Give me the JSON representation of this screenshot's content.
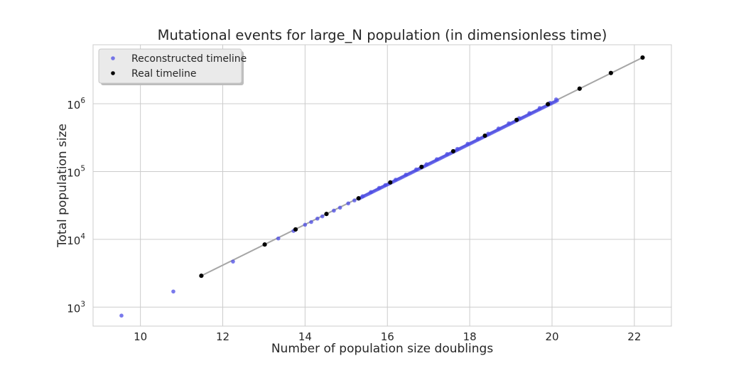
{
  "chart_data": {
    "type": "scatter",
    "title": "Mutational events for large_N population (in dimensionless time)",
    "xlabel": "Number of population size doublings",
    "ylabel": "Total population size",
    "xlim": [
      8.85,
      22.9
    ],
    "ylim_log10": [
      2.72,
      6.87
    ],
    "y_scale": "log",
    "grid": true,
    "legend_placement": "top-left",
    "x_ticks": [
      10,
      12,
      14,
      16,
      18,
      20,
      22
    ],
    "y_ticks": [
      {
        "base": "10",
        "exp": "3",
        "log": 3
      },
      {
        "base": "10",
        "exp": "4",
        "log": 4
      },
      {
        "base": "10",
        "exp": "5",
        "log": 5
      },
      {
        "base": "10",
        "exp": "6",
        "log": 6
      }
    ],
    "fit_line": {
      "x": [
        11.48,
        22.2
      ],
      "y": [
        2900,
        4800000
      ],
      "color": "#a6a6a6"
    },
    "series": [
      {
        "name": "Reconstructed timeline",
        "color": "#4c4ce6",
        "x": [
          9.54,
          10.8,
          12.25,
          13.35,
          13.72,
          14.0,
          14.15,
          14.3,
          14.42,
          14.7,
          14.85,
          15.05,
          15.2,
          15.4,
          15.6,
          15.8,
          15.95,
          16.2,
          16.45,
          16.7,
          16.95,
          17.2,
          17.45,
          17.7,
          17.95,
          18.2,
          18.45,
          18.7,
          18.95,
          19.2,
          19.45,
          19.7,
          19.95,
          20.1
        ],
        "y": [
          750,
          1700,
          4700,
          10300,
          13300,
          16400,
          18000,
          20200,
          21800,
          26500,
          29300,
          33900,
          37500,
          43300,
          49900,
          57400,
          63200,
          75700,
          90100,
          107500,
          128000,
          152000,
          181000,
          216000,
          257000,
          306000,
          362000,
          432000,
          515000,
          613000,
          728000,
          865000,
          1030000,
          1160000
        ]
      },
      {
        "name": "Real timeline",
        "color": "#000000",
        "x": [
          11.48,
          13.02,
          13.77,
          14.52,
          15.3,
          16.07,
          16.83,
          17.6,
          18.37,
          19.14,
          19.9,
          20.67,
          21.43,
          22.2
        ],
        "y": [
          2900,
          8400,
          14000,
          23700,
          40300,
          69100,
          117000,
          199000,
          338000,
          578000,
          985000,
          1670000,
          2840000,
          4800000
        ]
      }
    ]
  }
}
